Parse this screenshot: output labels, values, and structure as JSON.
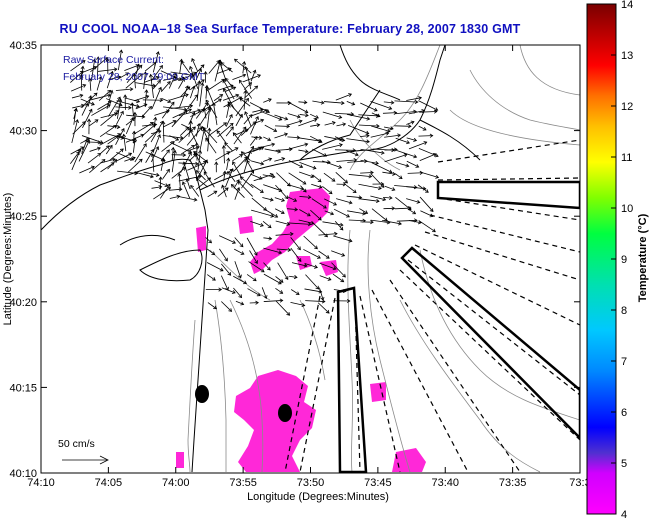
{
  "title": "RU COOL  NOAA–18  Sea Surface Temperature:  February 28, 2007 1830 GMT",
  "legend": {
    "line1": "Raw Surface Current:",
    "line2": "February 28, 2007 19:00 GMT"
  },
  "scale_bar": {
    "label": "50 cm/s"
  },
  "axes": {
    "xlabel": "Longitude (Degrees:Minutes)",
    "ylabel": "Latitude (Degrees:Minutes)",
    "xticks": [
      "74:10",
      "74:05",
      "74:00",
      "73:55",
      "73:50",
      "73:45",
      "73:40",
      "73:35",
      "73:3"
    ],
    "yticks": [
      "40:35",
      "40:30",
      "40:25",
      "40:20",
      "40:15",
      "40:10"
    ]
  },
  "colorbar": {
    "title": "Temperature (°C)",
    "ticks": [
      "14",
      "13",
      "12",
      "11",
      "10",
      "9",
      "8",
      "7",
      "6",
      "5",
      "4"
    ],
    "range": [
      4,
      14
    ]
  },
  "colors": {
    "title": "#1010c0",
    "sst_patch": "#ff28d8",
    "station": "#000000"
  }
}
